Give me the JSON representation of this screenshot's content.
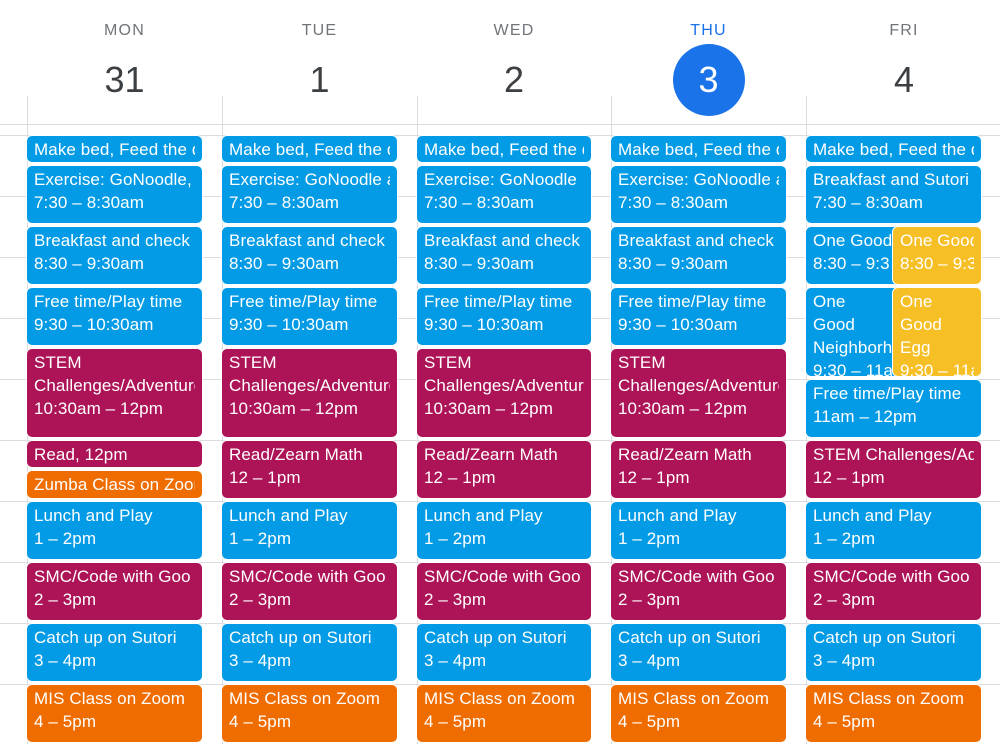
{
  "colors": {
    "blue": "#039be5",
    "magenta": "#ad1457",
    "orange": "#ef6c00",
    "yellow": "#f6bf26",
    "today_accent": "#1a73e8"
  },
  "days": [
    {
      "dow": "MON",
      "num": "31"
    },
    {
      "dow": "TUE",
      "num": "1"
    },
    {
      "dow": "WED",
      "num": "2"
    },
    {
      "dow": "THU",
      "num": "3",
      "today": true
    },
    {
      "dow": "FRI",
      "num": "4"
    }
  ],
  "mon": {
    "chores": {
      "title": "Make bed, Feed the dog"
    },
    "exercise": {
      "title": "Exercise: GoNoodle, ",
      "time": "7:30 – 8:30am"
    },
    "breakfast": {
      "title": "Breakfast and check",
      "time": "8:30 – 9:30am"
    },
    "free": {
      "title": "Free time/Play time",
      "time": "9:30 – 10:30am"
    },
    "stem": {
      "title": "STEM Challenges/Adventures",
      "time": "10:30am – 12pm"
    },
    "read": {
      "title": "Read, 12pm"
    },
    "zumba": {
      "title": "Zumba Class on Zoom"
    },
    "lunch": {
      "title": "Lunch and Play",
      "time": "1 – 2pm"
    },
    "smc": {
      "title": "SMC/Code with Goo",
      "time": "2 – 3pm"
    },
    "catch": {
      "title": "Catch up on Sutori",
      "time": "3 – 4pm"
    },
    "mis": {
      "title": "MIS Class on Zoom",
      "time": "4 – 5pm"
    }
  },
  "tue": {
    "chores": {
      "title": "Make bed, Feed the dog"
    },
    "exercise": {
      "title": "Exercise: GoNoodle and",
      "time": "7:30 – 8:30am"
    },
    "breakfast": {
      "title": "Breakfast and check",
      "time": "8:30 – 9:30am"
    },
    "free": {
      "title": "Free time/Play time",
      "time": "9:30 – 10:30am"
    },
    "stem": {
      "title": "STEM Challenges/Adventures",
      "time": "10:30am – 12pm"
    },
    "read": {
      "title": "Read/Zearn Math",
      "time": "12 – 1pm"
    },
    "lunch": {
      "title": "Lunch and Play",
      "time": "1 – 2pm"
    },
    "smc": {
      "title": "SMC/Code with Goo",
      "time": "2 – 3pm"
    },
    "catch": {
      "title": "Catch up on Sutori",
      "time": "3 – 4pm"
    },
    "mis": {
      "title": "MIS Class on Zoom",
      "time": "4 – 5pm"
    }
  },
  "wed": {
    "chores": {
      "title": "Make bed, Feed the dog"
    },
    "exercise": {
      "title": "Exercise: GoNoodle",
      "time": "7:30 – 8:30am"
    },
    "breakfast": {
      "title": "Breakfast and check",
      "time": "8:30 – 9:30am"
    },
    "free": {
      "title": "Free time/Play time",
      "time": "9:30 – 10:30am"
    },
    "stem": {
      "title": "STEM Challenges/Adventures",
      "time": "10:30am – 12pm"
    },
    "read": {
      "title": "Read/Zearn Math",
      "time": "12 – 1pm"
    },
    "lunch": {
      "title": "Lunch and Play",
      "time": "1 – 2pm"
    },
    "smc": {
      "title": "SMC/Code with Goo",
      "time": "2 – 3pm"
    },
    "catch": {
      "title": "Catch up on Sutori",
      "time": "3 – 4pm"
    },
    "mis": {
      "title": "MIS Class on Zoom",
      "time": "4 – 5pm"
    }
  },
  "thu": {
    "chores": {
      "title": "Make bed, Feed the dog"
    },
    "exercise": {
      "title": "Exercise: GoNoodle and",
      "time": "7:30 – 8:30am"
    },
    "breakfast": {
      "title": "Breakfast and check",
      "time": "8:30 – 9:30am"
    },
    "free": {
      "title": "Free time/Play time",
      "time": "9:30 – 10:30am"
    },
    "stem": {
      "title": "STEM Challenges/Adventures",
      "time": "10:30am – 12pm"
    },
    "read": {
      "title": "Read/Zearn Math",
      "time": "12 – 1pm"
    },
    "lunch": {
      "title": "Lunch and Play",
      "time": "1 – 2pm"
    },
    "smc": {
      "title": "SMC/Code with Goo",
      "time": "2 – 3pm"
    },
    "catch": {
      "title": "Catch up on Sutori",
      "time": "3 – 4pm"
    },
    "mis": {
      "title": "MIS Class on Zoom",
      "time": "4 – 5pm"
    }
  },
  "fri": {
    "chores": {
      "title": "Make bed, Feed the dog"
    },
    "breakfast": {
      "title": "Breakfast and Sutori",
      "time": "7:30 – 8:30am"
    },
    "good1a": {
      "title": "One Good",
      "time": "8:30 – 9:3"
    },
    "good1b": {
      "title": "One Good",
      "time": "8:30 – 9:3"
    },
    "good2a": {
      "title": "One Good Neighborhood",
      "time": "9:30 – 11a"
    },
    "good2b": {
      "title": "One Good Egg",
      "time": "9:30 – 11a"
    },
    "free": {
      "title": "Free time/Play time",
      "time": "11am – 12pm"
    },
    "stem": {
      "title": "STEM Challenges/Ad",
      "time": "12 – 1pm"
    },
    "lunch": {
      "title": "Lunch and Play",
      "time": "1 – 2pm"
    },
    "smc": {
      "title": "SMC/Code with Goo",
      "time": "2 – 3pm"
    },
    "catch": {
      "title": "Catch up on Sutori",
      "time": "3 – 4pm"
    },
    "mis": {
      "title": "MIS Class on Zoom",
      "time": "4 – 5pm"
    }
  }
}
